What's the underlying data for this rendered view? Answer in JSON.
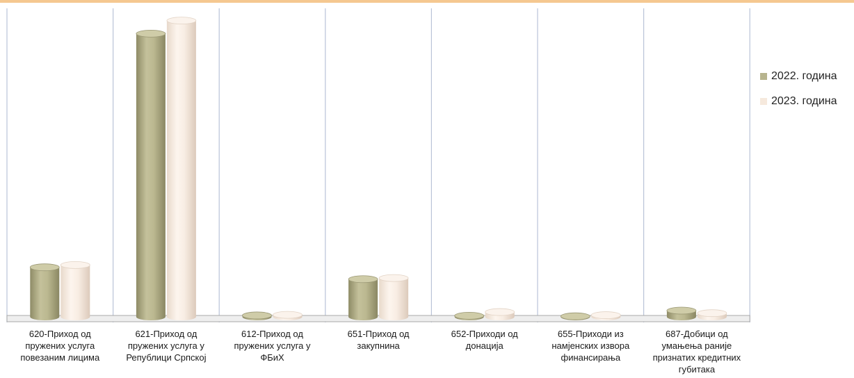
{
  "colors": {
    "top_border": "#f5c890",
    "series_2022": "#b7b48e",
    "series_2023": "#f6e9dd",
    "grid": "#b9c3d8",
    "floor": "#a8a8a8"
  },
  "chart_data": {
    "type": "bar",
    "categories": [
      "620-Приход од пружених услуга повезаним лицима",
      "621-Приход од пружених услуга у Републици Српској",
      "612-Приход од пружених услуга у ФБиХ",
      "651-Приход од закупнина",
      "652-Приходи од донација",
      "655-Приходи из намјенских извора финансирања",
      "687-Добици од умањења раније признатих кредитних губитака"
    ],
    "series": [
      {
        "name": "2022. година",
        "values": [
          17.5,
          100,
          0.5,
          13.3,
          0.4,
          0.2,
          2.2
        ]
      },
      {
        "name": "2023. година",
        "values": [
          18.3,
          104.6,
          0.7,
          13.7,
          1.7,
          0.6,
          1.3
        ]
      }
    ],
    "ylim": [
      0,
      105
    ],
    "grid": true,
    "legend_position": "right",
    "title": "",
    "xlabel": "",
    "ylabel": ""
  }
}
